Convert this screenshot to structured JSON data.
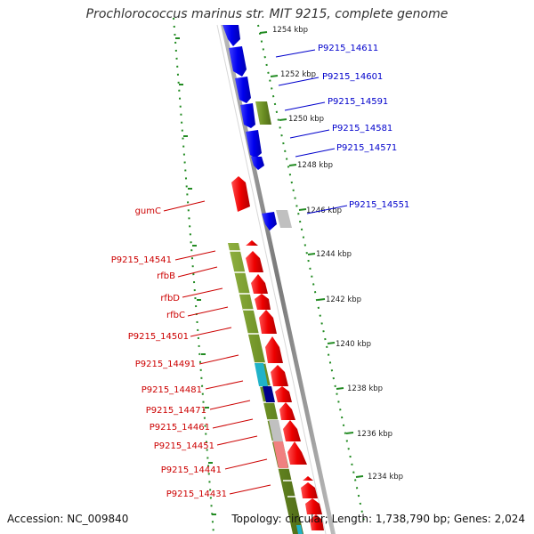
{
  "title": "Prochlorococcus marinus str. MIT 9215, complete genome",
  "accession": "Accession: NC_009840",
  "summary": "Topology: circular; Length: 1,738,790 bp; Genes: 2,024",
  "colors": {
    "cds_forward": "#0000ee",
    "cds_reverse": "#ee0000",
    "cog_green": "#6b8e23",
    "cog_cyan": "#20b2c8",
    "cog_navy": "#00008b",
    "cog_grey": "#c0c0c0",
    "cog_pink": "#f08080",
    "backbone": "#808080",
    "ruler": "#228b22",
    "label_forward": "#0000cc",
    "label_reverse": "#cc0000"
  },
  "kbp_ticks": [
    "1254 kbp",
    "1252 kbp",
    "1250 kbp",
    "1248 kbp",
    "1246 kbp",
    "1244 kbp",
    "1242 kbp",
    "1240 kbp",
    "1238 kbp",
    "1236 kbp",
    "1234 kbp"
  ],
  "forward_labels": [
    "P9215_14611",
    "P9215_14601",
    "P9215_14591",
    "P9215_14581",
    "P9215_14571",
    "P9215_14551"
  ],
  "reverse_labels": [
    "gumC",
    "P9215_14541",
    "rfbB",
    "rfbD",
    "rfbC",
    "P9215_14501",
    "P9215_14491",
    "P9215_14481",
    "P9215_14471",
    "P9215_14461",
    "P9215_14451",
    "P9215_14441",
    "P9215_14431"
  ]
}
